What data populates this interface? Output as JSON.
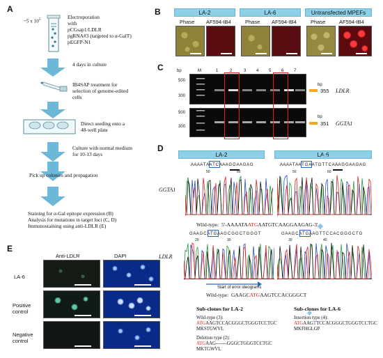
{
  "panel_a": {
    "letter": "A",
    "cells": "~5 x 10",
    "cells_exp": "5",
    "electroporation": "Electroporation",
    "with": "with",
    "plasmid1": "pCGsap1/LDLR",
    "plasmid2": "pgRNA#3 (targeted to α-GalT)",
    "plasmid3": "pEGFP-N1",
    "step1": "4 days in culture",
    "step2a": "IB4SAP treatment for",
    "step2b": "selection of genome-edited",
    "step2c": "cells",
    "step3a": "Direct seeding onto a",
    "step3b": "48-well plate",
    "step4a": "Culture with normal medium",
    "step4b": "for 10-13 days",
    "step5": "Pick up colonies and propagation",
    "step6a": "Staining for α-Gal epitope expression (B)",
    "step6b": "Analysis for mutations in target loci (C, D)",
    "step6c": "Immunostaining using anti-LDLR (E)"
  },
  "panel_b": {
    "letter": "B",
    "group1": "LA-2",
    "group2": "LA-6",
    "group3": "Untransfected MPEFs",
    "col_phase": "Phase",
    "col_af": "AF594-IB4"
  },
  "panel_c": {
    "letter": "C",
    "bp": "bp",
    "m": "M",
    "lanes": [
      "1",
      "2",
      "3",
      "4",
      "5",
      "6",
      "7"
    ],
    "size500a": "500",
    "size300a": "300",
    "size500b": "500",
    "size300b": "300",
    "band1": "355",
    "band2": "351",
    "gene1": "LDLR",
    "gene2": "GGTA1",
    "bp_right1": "bp",
    "bp_right2": "bp"
  },
  "panel_d": {
    "letter": "D",
    "head1": "LA-2",
    "head2": "LA-6",
    "gene1": "GGTA1",
    "gene2": "LDLR",
    "seq1a": "A A A A T A A T C A A A G G A A G A G",
    "seq1b": "A A A A T A A T G A A T G T T C A A A G G A A G A G",
    "wt1_label": "Wild-type:",
    "wt1_a": "5'-AAAATA",
    "wt1_atg": "ATG",
    "wt1_b": "AATGTCAAGGAAGAG-3'",
    "seq2a": "G A A G C A T G A A G C G G C T G G G T",
    "seq2b": "G A A G C A T G A A G T T C C A C G G G C T G",
    "start_label": "Start of error ideograms",
    "wt2_label": "Wild-type:",
    "wt2_a": "GAAGC",
    "wt2_atg": "ATG",
    "wt2_b": "AAGTCCACGGGCT",
    "sub1_title": "Sub-clones for LA-2",
    "sub2_title": "Sub-clones for LA-6",
    "wt_type": "Wild-type (3):",
    "wt_seq_atg": "ATG",
    "wt_seq": "AAGTCCACGGGCTGGGTCCTGC",
    "wt_prot": "MKSTGWVL",
    "del_type": "Deletion type (2):",
    "del_seq_atg": "ATG",
    "del_seq": "AAG-------GGGCTGGGTCCTGC",
    "del_prot": "MKTGWVL",
    "ins_type": "Insertion type (4):",
    "ins_seq_atg": "ATG",
    "ins_seq_a": "AAG",
    "ins_seq_t": "T",
    "ins_seq_b": "TCCACGGGCTGGGTCCTGC",
    "ins_prot": "MKFHGLGP",
    "ticks_a": [
      "50",
      "60"
    ],
    "ticks_b": [
      "50",
      "60"
    ],
    "ticks_c": [
      "20",
      "30"
    ],
    "ticks_d": [
      "30",
      "40"
    ]
  },
  "panel_e": {
    "letter": "E",
    "col1": "Anti-LDLR",
    "col2": "DAPI",
    "row1": "LA-6",
    "row2a": "Positive",
    "row2b": "control",
    "row3a": "Negative",
    "row3b": "control"
  },
  "colors": {
    "arrow": "#6db8d8",
    "header_bar": "#8fd0e6",
    "red_box": "#e0201a",
    "orange_marker": "#f5a623",
    "atg_red": "#e0201a"
  }
}
